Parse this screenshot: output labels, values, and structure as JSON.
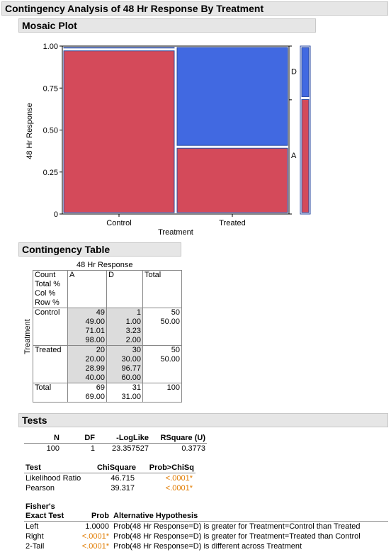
{
  "report": {
    "title": "Contingency Analysis of 48 Hr Response By Treatment"
  },
  "mosaic": {
    "title": "Mosaic Plot",
    "ylabel": "48 Hr Response",
    "xlabel": "Treatment",
    "colors": {
      "A": "#d44a5a",
      "D": "#4169e1"
    }
  },
  "chart_data": {
    "type": "mosaic",
    "title": "Mosaic Plot",
    "xlabel": "Treatment",
    "ylabel": "48 Hr Response",
    "ylim": [
      0,
      1
    ],
    "yticks": [
      "0",
      "0.25",
      "0.50",
      "0.75",
      "1.00"
    ],
    "categories": [
      "Control",
      "Treated"
    ],
    "column_widths": [
      0.5,
      0.5
    ],
    "series": [
      {
        "name": "A",
        "values": [
          0.98,
          0.4
        ]
      },
      {
        "name": "D",
        "values": [
          0.02,
          0.6
        ]
      }
    ],
    "marginal": {
      "A": 0.69,
      "D": 0.31
    }
  },
  "contingency": {
    "title": "Contingency Table",
    "col_var": "48 Hr Response",
    "row_var": "Treatment",
    "stat_labels": [
      "Count",
      "Total %",
      "Col %",
      "Row %"
    ],
    "col_headers": [
      "A",
      "D",
      "Total"
    ],
    "rows": [
      {
        "label": "Control",
        "A": [
          "49",
          "49.00",
          "71.01",
          "98.00"
        ],
        "D": [
          "1",
          "1.00",
          "3.23",
          "2.00"
        ],
        "T": [
          "50",
          "50.00"
        ]
      },
      {
        "label": "Treated",
        "A": [
          "20",
          "20.00",
          "28.99",
          "40.00"
        ],
        "D": [
          "30",
          "30.00",
          "96.77",
          "60.00"
        ],
        "T": [
          "50",
          "50.00"
        ]
      }
    ],
    "total": {
      "label": "Total",
      "A": [
        "69",
        "69.00"
      ],
      "D": [
        "31",
        "31.00"
      ],
      "T": "100"
    }
  },
  "tests": {
    "title": "Tests",
    "summary_headers": [
      "N",
      "DF",
      "-LogLike",
      "RSquare (U)"
    ],
    "summary_values": [
      "100",
      "1",
      "23.357527",
      "0.3773"
    ],
    "chi_headers": [
      "Test",
      "ChiSquare",
      "Prob>ChiSq"
    ],
    "chi_rows": [
      {
        "test": "Likelihood Ratio",
        "chi": "46.715",
        "prob": "<.0001*"
      },
      {
        "test": "Pearson",
        "chi": "39.317",
        "prob": "<.0001*"
      }
    ],
    "fisher_header_1": "Fisher's",
    "fisher_header_2": "Exact Test",
    "fisher_prob_header": "Prob",
    "fisher_alt_header": "Alternative Hypothesis",
    "fisher_rows": [
      {
        "test": "Left",
        "prob": "1.0000",
        "alt": "Prob(48 Hr Response=D) is greater for Treatment=Control than Treated",
        "signif": false
      },
      {
        "test": "Right",
        "prob": "<.0001*",
        "alt": "Prob(48 Hr Response=D) is greater for Treatment=Treated than Control",
        "signif": true
      },
      {
        "test": "2-Tail",
        "prob": "<.0001*",
        "alt": "Prob(48 Hr Response=D) is different across Treatment",
        "signif": true
      }
    ]
  }
}
